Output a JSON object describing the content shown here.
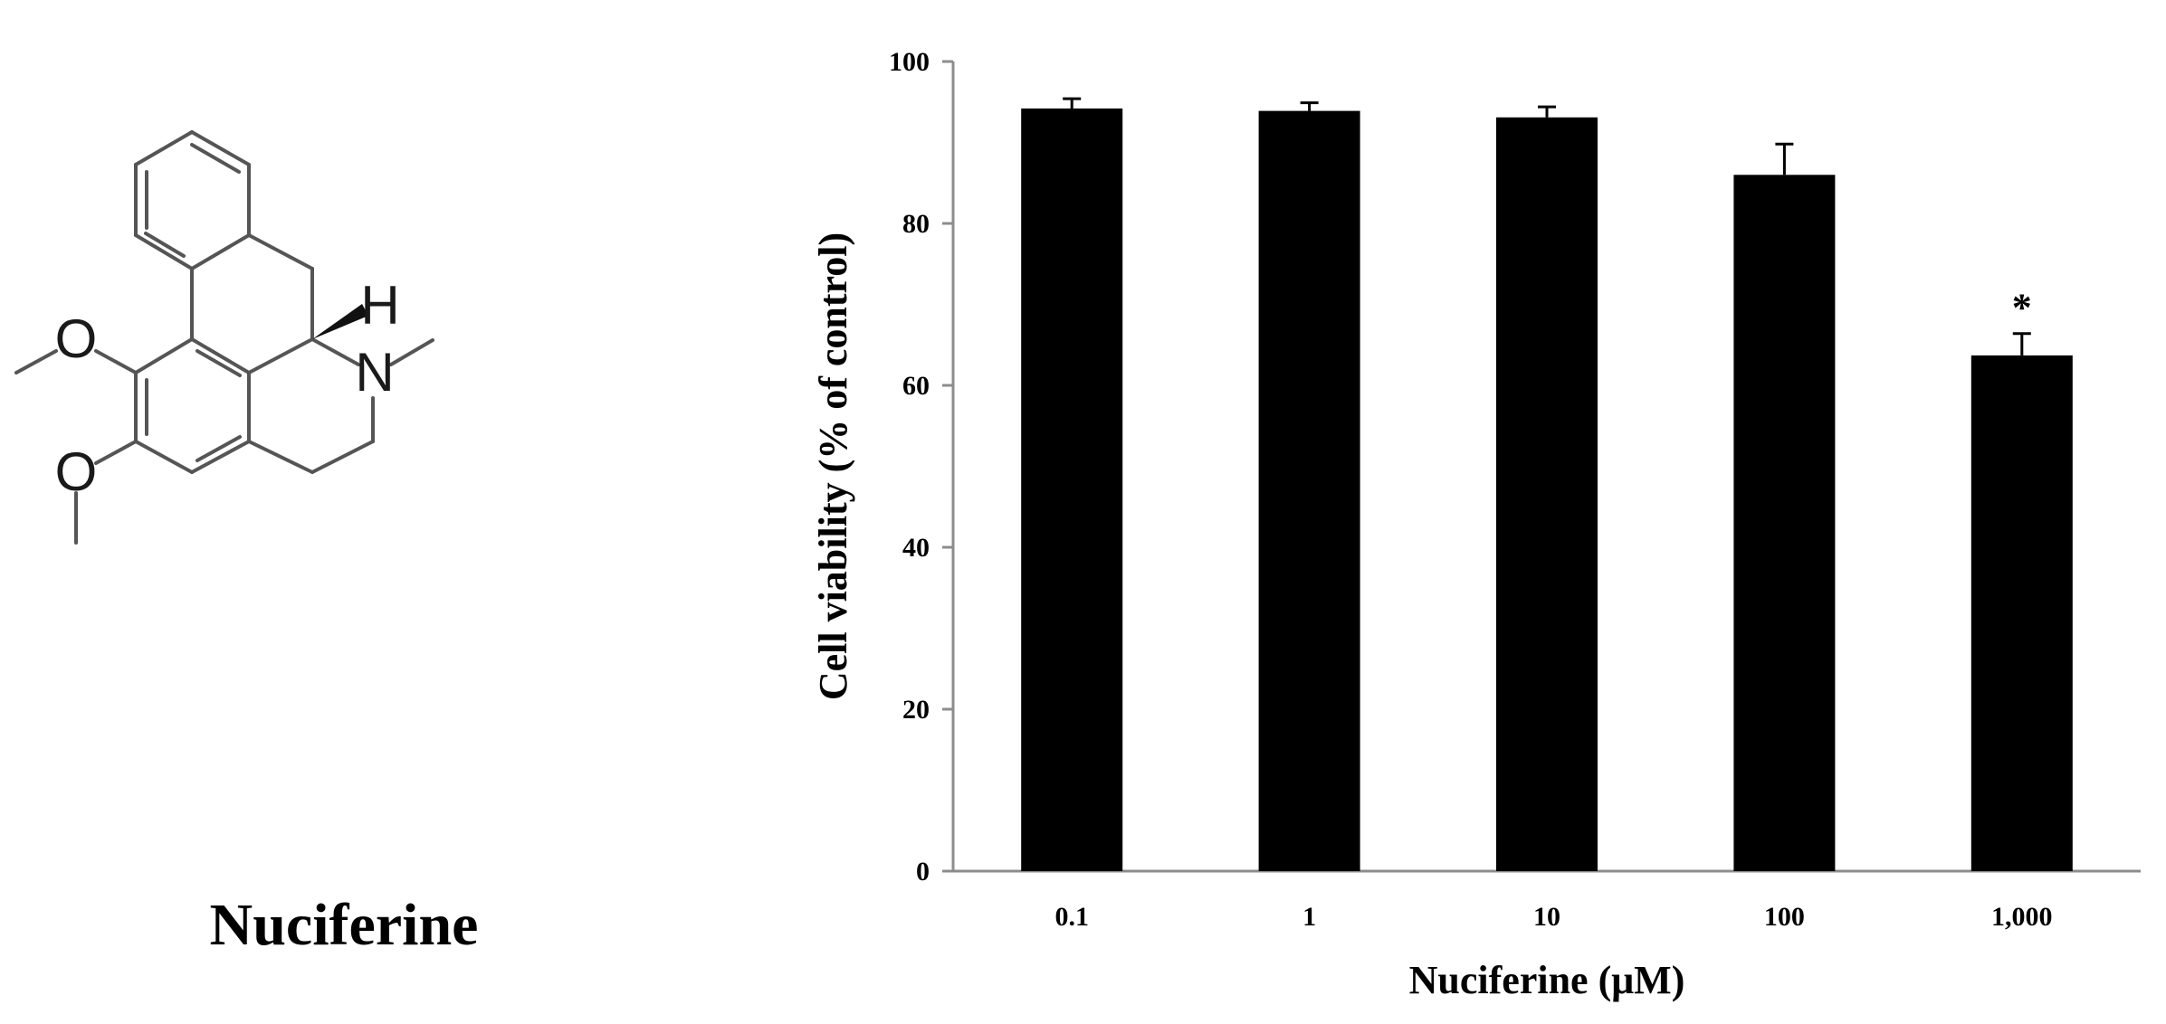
{
  "compound": {
    "name": "Nuciferine",
    "atoms": {
      "oxygen_top": "O",
      "oxygen_bottom": "O",
      "nitrogen": "N",
      "hydrogen": "H"
    }
  },
  "chart_data": {
    "type": "bar",
    "xlabel": "Nuciferine (μM)",
    "ylabel": "Cell viability (% of control)",
    "categories": [
      "0.1",
      "1",
      "10",
      "100",
      "1,000"
    ],
    "values": [
      94.2,
      93.9,
      93.1,
      86.0,
      63.7
    ],
    "errors": [
      1.2,
      1.0,
      1.3,
      3.8,
      2.7
    ],
    "annotations": [
      "",
      "",
      "",
      "",
      "*"
    ],
    "ylim": [
      0,
      100
    ],
    "yticks": [
      0,
      20,
      40,
      60,
      80,
      100
    ],
    "grid": false,
    "bar_color": "#000000"
  }
}
